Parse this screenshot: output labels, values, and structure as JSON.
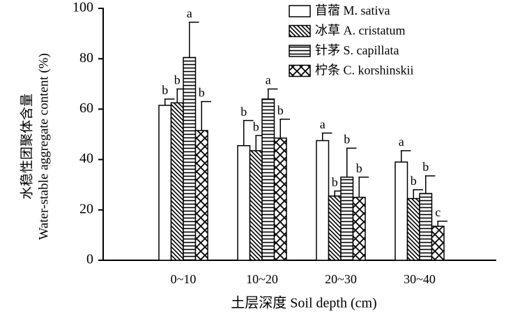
{
  "chart_data": {
    "type": "bar",
    "xlabel": "土层深度 Soil depth (cm)",
    "ylabel": [
      "水稳性团聚体含量",
      "Water-stable aggregate content (%)"
    ],
    "categories": [
      "0~10",
      "10~20",
      "20~30",
      "30~40"
    ],
    "ylim": [
      0,
      100
    ],
    "yticks": [
      0,
      20,
      40,
      60,
      80,
      100
    ],
    "series": [
      {
        "name": "苜蓿 M. sativa",
        "color": "#000000",
        "hatch": "none",
        "values": [
          61.5,
          45.5,
          47.5,
          39
        ],
        "errors": [
          2.5,
          10,
          3,
          4.5
        ],
        "letters": [
          "b",
          "b",
          "a",
          "a"
        ]
      },
      {
        "name": "冰草 A. cristatum",
        "color": "#000000",
        "hatch": "diagonal",
        "values": [
          62.5,
          43.5,
          25.5,
          24.5
        ],
        "errors": [
          5.5,
          6,
          2,
          3.5
        ],
        "letters": [
          "b",
          "b",
          "b",
          "b"
        ]
      },
      {
        "name": "针茅 S. capillata",
        "color": "#000000",
        "hatch": "horizontal",
        "values": [
          80.5,
          64,
          33,
          26.5
        ],
        "errors": [
          14,
          4,
          11.5,
          7
        ],
        "letters": [
          "a",
          "a",
          "b",
          "b"
        ]
      },
      {
        "name": "柠条 C. korshinskii",
        "color": "#000000",
        "hatch": "cross",
        "values": [
          51.5,
          48.5,
          25,
          13.5
        ],
        "errors": [
          11.5,
          7.5,
          8,
          2
        ],
        "letters": [
          "b",
          "b",
          "b",
          "c"
        ]
      }
    ]
  }
}
